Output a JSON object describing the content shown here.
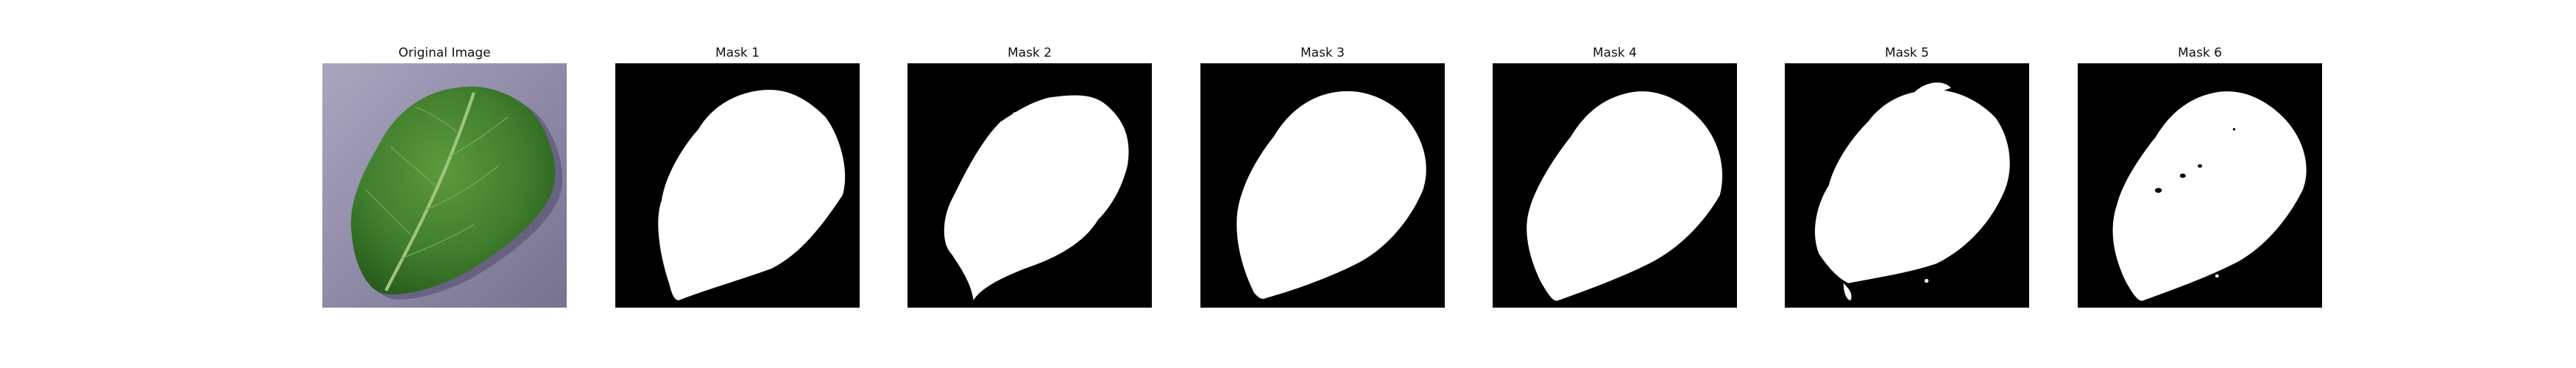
{
  "figure": {
    "panels": [
      {
        "title": "Original Image",
        "kind": "photo"
      },
      {
        "title": "Mask 1",
        "kind": "mask"
      },
      {
        "title": "Mask 2",
        "kind": "mask"
      },
      {
        "title": "Mask 3",
        "kind": "mask"
      },
      {
        "title": "Mask 4",
        "kind": "mask"
      },
      {
        "title": "Mask 5",
        "kind": "mask"
      },
      {
        "title": "Mask 6",
        "kind": "mask"
      }
    ]
  },
  "colors": {
    "mask_background": "#000000",
    "mask_foreground": "#ffffff",
    "leaf": "#3e7d2c",
    "photo_background": "#8e8aa8"
  }
}
